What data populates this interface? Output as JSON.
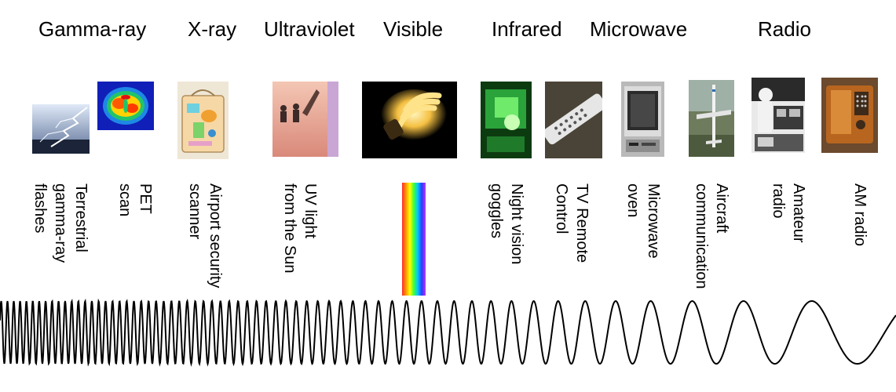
{
  "bands": [
    "Gamma-ray",
    "X-ray",
    "Ultraviolet",
    "Visible",
    "Infrared",
    "Microwave",
    "Radio"
  ],
  "labels": {
    "gamma_flashes": "Terrestrial\ngamma-ray\nflashes",
    "pet": "PET\nscan",
    "airport": "Airport security\nscanner",
    "uv": "UV light\nfrom the Sun",
    "night": "Night vision\ngoggles",
    "remote": "TV Remote\nControl",
    "microwave": "Microwave\noven",
    "aircraft": "Aircraft\ncommunication",
    "amateur": "Amateur\nradio",
    "am": "AM radio"
  },
  "pictures": [
    "lightning-photo",
    "pet-scan-photo",
    "x-ray-bag-photo",
    "uv-sun-photo",
    "light-bulb-photo",
    "night-vision-photo",
    "tv-remote-photo",
    "microwave-oven-photo",
    "aircraft-photo",
    "amateur-radio-photo",
    "am-radio-photo"
  ],
  "colors": {
    "wave": "#000000",
    "text": "#000000"
  }
}
